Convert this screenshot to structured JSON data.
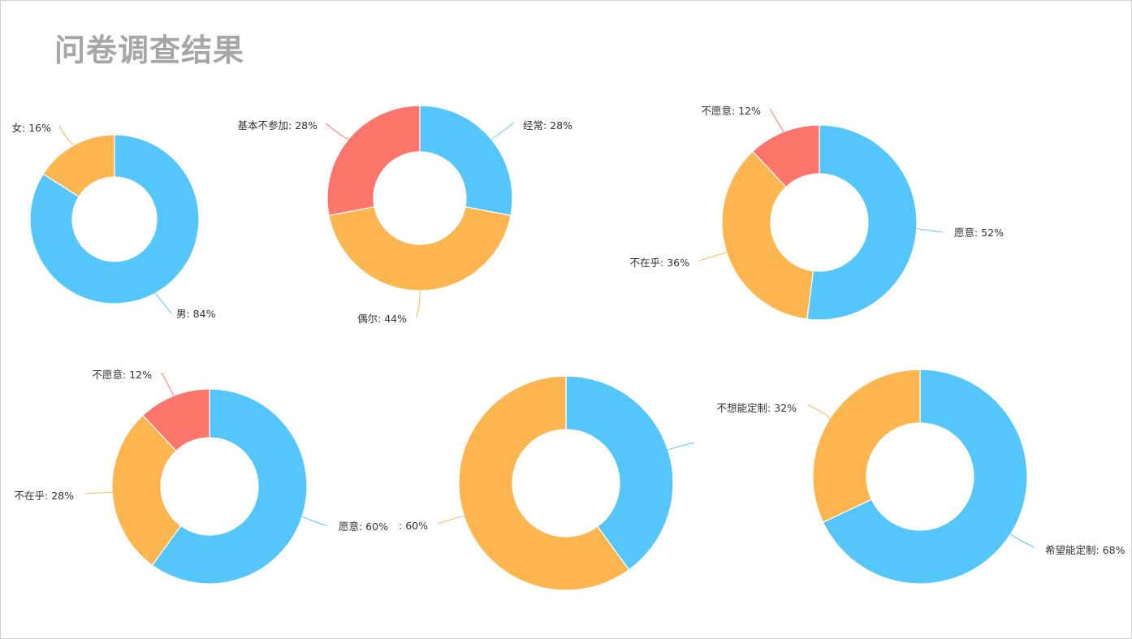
{
  "title": "问卷调查结果",
  "colors": {
    "blue": "#55c6fc",
    "orange": "#fdb54f",
    "red": "#fe756b"
  },
  "chart_data": [
    {
      "type": "pie",
      "slices": [
        {
          "name": "男",
          "value": 84,
          "label": "男: 84%",
          "color": "blue"
        },
        {
          "name": "女",
          "value": 16,
          "label": "女: 16%",
          "color": "orange"
        }
      ]
    },
    {
      "type": "pie",
      "slices": [
        {
          "name": "经常",
          "value": 28,
          "label": "经常: 28%",
          "color": "blue"
        },
        {
          "name": "偶尔",
          "value": 44,
          "label": "偶尔: 44%",
          "color": "orange"
        },
        {
          "name": "基本不参加",
          "value": 28,
          "label": "基本不参加: 28%",
          "color": "red"
        }
      ]
    },
    {
      "type": "pie",
      "slices": [
        {
          "name": "愿意",
          "value": 52,
          "label": "愿意: 52%",
          "color": "blue"
        },
        {
          "name": "不在乎",
          "value": 36,
          "label": "不在乎: 36%",
          "color": "orange"
        },
        {
          "name": "不愿意",
          "value": 12,
          "label": "不愿意: 12%",
          "color": "red"
        }
      ]
    },
    {
      "type": "pie",
      "slices": [
        {
          "name": "愿意",
          "value": 60,
          "label": "愿意: 60%",
          "color": "blue"
        },
        {
          "name": "不在乎",
          "value": 28,
          "label": "不在乎: 28%",
          "color": "orange"
        },
        {
          "name": "不愿意",
          "value": 12,
          "label": "不愿意: 12%",
          "color": "red"
        }
      ]
    },
    {
      "type": "pie",
      "slices": [
        {
          "name": "",
          "value": 40,
          "label": "",
          "color": "blue"
        },
        {
          "name": "",
          "value": 60,
          "label": ": 60%",
          "color": "orange"
        }
      ]
    },
    {
      "type": "pie",
      "slices": [
        {
          "name": "希望能定制",
          "value": 68,
          "label": "希望能定制: 68%",
          "color": "blue"
        },
        {
          "name": "不想能定制",
          "value": 32,
          "label": "不想能定制: 32%",
          "color": "orange"
        }
      ]
    }
  ]
}
